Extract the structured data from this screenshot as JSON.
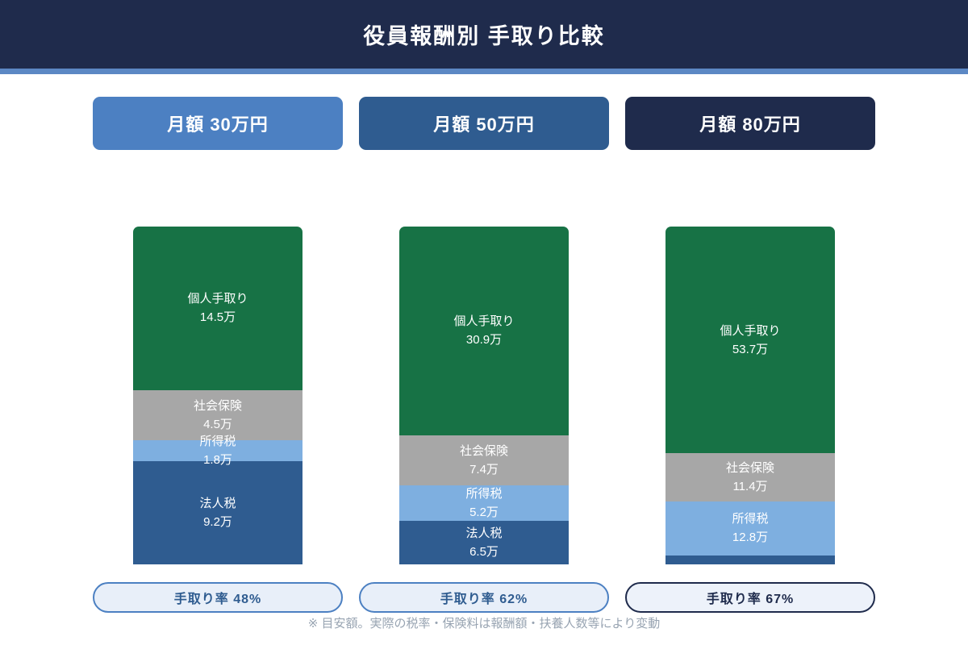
{
  "header": {
    "title": "役員報酬別 手取り比較"
  },
  "colors": {
    "header_bg": "#1f2b4c",
    "accent_line": "#5c88c4",
    "background": "#ffffff",
    "takehome_green": "#177245",
    "insurance_gray": "#a7a7a7",
    "income_tax_blue": "#7eafe0",
    "corporate_tax_blue": "#2f5c90"
  },
  "columns": [
    {
      "label": "月額 30万円",
      "pill_color": "#4c80c2",
      "segments": [
        {
          "name": "個人手取り",
          "value_label": "14.5万",
          "value": 14.5,
          "color": "#177245"
        },
        {
          "name": "社会保険",
          "value_label": "4.5万",
          "value": 4.5,
          "color": "#a7a7a7"
        },
        {
          "name": "所得税",
          "value_label": "1.8万",
          "value": 1.8,
          "color": "#7eafe0"
        },
        {
          "name": "法人税",
          "value_label": "9.2万",
          "value": 9.2,
          "color": "#2f5c90"
        }
      ],
      "rate": {
        "label": "手取り率 48%",
        "border": "#4c80c2",
        "text": "#2f5c90",
        "bg": "#e8eff9"
      }
    },
    {
      "label": "月額 50万円",
      "pill_color": "#2f5c90",
      "segments": [
        {
          "name": "個人手取り",
          "value_label": "30.9万",
          "value": 30.9,
          "color": "#177245"
        },
        {
          "name": "社会保険",
          "value_label": "7.4万",
          "value": 7.4,
          "color": "#a7a7a7"
        },
        {
          "name": "所得税",
          "value_label": "5.2万",
          "value": 5.2,
          "color": "#7eafe0"
        },
        {
          "name": "法人税",
          "value_label": "6.5万",
          "value": 6.5,
          "color": "#2f5c90"
        }
      ],
      "rate": {
        "label": "手取り率 62%",
        "border": "#4c80c2",
        "text": "#2f5c90",
        "bg": "#e8eff9"
      }
    },
    {
      "label": "月額 80万円",
      "pill_color": "#1f2b4c",
      "segments": [
        {
          "name": "個人手取り",
          "value_label": "53.7万",
          "value": 53.7,
          "color": "#177245"
        },
        {
          "name": "社会保険",
          "value_label": "11.4万",
          "value": 11.4,
          "color": "#a7a7a7"
        },
        {
          "name": "所得税",
          "value_label": "12.8万",
          "value": 12.8,
          "color": "#7eafe0"
        },
        {
          "name": "",
          "value_label": "",
          "value": 2.1,
          "color": "#2f5c90"
        }
      ],
      "rate": {
        "label": "手取り率 67%",
        "border": "#1f2b4c",
        "text": "#1f2b4c",
        "bg": "#edf2fa"
      }
    }
  ],
  "footnote": "※ 目安額。実際の税率・保険料は報酬額・扶養人数等により変動",
  "chart_data": {
    "type": "bar",
    "subtype": "100%-stacked-column",
    "title": "役員報酬別 手取り比較",
    "categories": [
      "月額 30万円",
      "月額 50万円",
      "月額 80万円"
    ],
    "unit": "万円",
    "series": [
      {
        "name": "個人手取り",
        "values": [
          14.5,
          30.9,
          53.7
        ],
        "color": "#177245"
      },
      {
        "name": "社会保険",
        "values": [
          4.5,
          7.4,
          11.4
        ],
        "color": "#a7a7a7"
      },
      {
        "name": "所得税",
        "values": [
          1.8,
          5.2,
          12.8
        ],
        "color": "#7eafe0"
      },
      {
        "name": "法人税",
        "values": [
          9.2,
          6.5,
          2.1
        ],
        "color": "#2f5c90"
      }
    ],
    "column_totals": [
      30,
      50,
      80
    ],
    "takehome_rate_labels": [
      "手取り率 48%",
      "手取り率 62%",
      "手取り率 67%"
    ],
    "legend_position": "none",
    "grid": false,
    "note": "※ 目安額。実際の税率・保険料は報酬額・扶養人数等により変動"
  }
}
